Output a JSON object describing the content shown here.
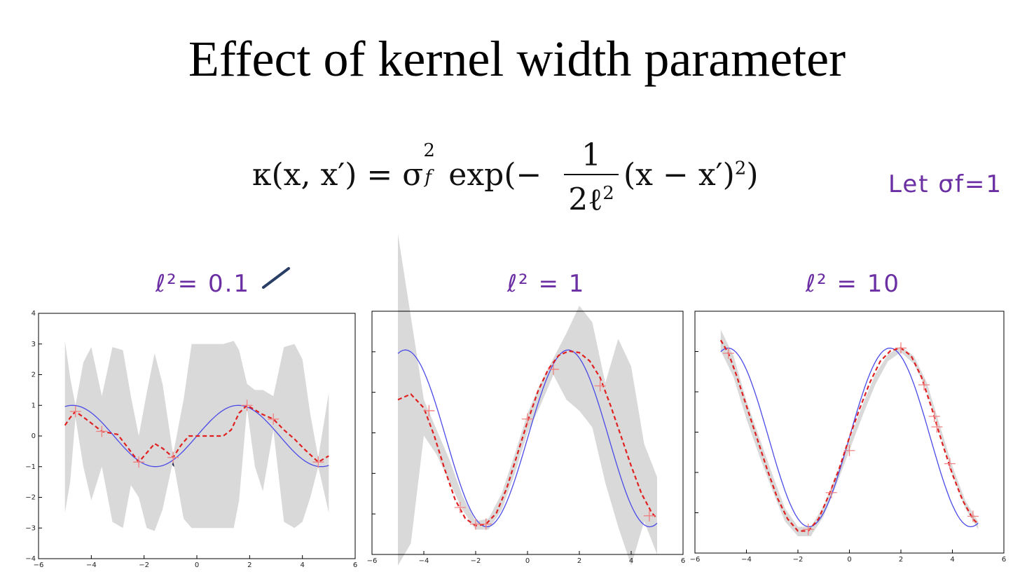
{
  "title": "Effect of kernel width parameter",
  "formula": {
    "lhs": "κ(x, x′) = σ",
    "sup": "2",
    "sub": "f",
    "exp": " exp(−",
    "num": "1",
    "den": "2ℓ",
    "den_sup": "2",
    "rest": "(x − x′)",
    "rest_sup": "2",
    "close": ")"
  },
  "annotations": {
    "let_sigma": "Let σf=1",
    "panel1": "ℓ²= 0.1",
    "panel2": "ℓ² = 1",
    "panel3": "ℓ² = 10"
  },
  "colors": {
    "true_function": "#4a4ae8",
    "mean": "#e02020",
    "band": "#d9d9d9",
    "annotation": "#6b2fa3"
  },
  "chart_data": [
    {
      "type": "line",
      "xlim": [
        -6,
        6
      ],
      "ylim": [
        -4,
        4
      ],
      "x_ticks": [
        "−6",
        "−4",
        "−2",
        "0",
        "2",
        "4",
        "6"
      ],
      "y_ticks": [
        "−4",
        "−3",
        "−2",
        "−1",
        "0",
        "1",
        "2",
        "3",
        "4"
      ],
      "train_x": [
        -4.6,
        -3.6,
        -2.2,
        -0.9,
        1.9,
        2.9,
        4.6
      ],
      "train_y": [
        0.8,
        0.15,
        -0.85,
        -0.7,
        1.0,
        0.55,
        -0.85
      ],
      "true_fn": "sin",
      "mean": {
        "x": [
          -5,
          -4.8,
          -4.6,
          -4.2,
          -3.6,
          -3.0,
          -2.6,
          -2.2,
          -1.8,
          -1.6,
          -1.3,
          -0.9,
          -0.6,
          -0.3,
          0.2,
          0.6,
          1.0,
          1.3,
          1.6,
          1.9,
          2.2,
          2.5,
          2.9,
          3.3,
          3.7,
          4.1,
          4.6,
          5.0
        ],
        "y": [
          0.35,
          0.6,
          0.8,
          0.55,
          0.15,
          0.05,
          -0.4,
          -0.85,
          -0.45,
          -0.25,
          -0.4,
          -0.7,
          -0.3,
          0.0,
          0.0,
          0.0,
          0.0,
          0.2,
          0.75,
          1.0,
          0.85,
          0.7,
          0.55,
          0.2,
          -0.1,
          -0.45,
          -0.85,
          -0.65
        ]
      },
      "band": {
        "x": [
          -5,
          -4.8,
          -4.6,
          -4.3,
          -4.0,
          -3.6,
          -3.2,
          -2.8,
          -2.5,
          -2.2,
          -1.9,
          -1.6,
          -1.3,
          -0.9,
          -0.5,
          -0.2,
          0.2,
          0.6,
          1.0,
          1.4,
          1.6,
          1.9,
          2.2,
          2.5,
          2.9,
          3.3,
          3.7,
          4.0,
          4.3,
          4.6,
          5.0
        ],
        "upper": [
          3.1,
          1.9,
          1.0,
          2.4,
          2.9,
          1.3,
          2.9,
          2.8,
          1.3,
          0.0,
          1.4,
          2.7,
          1.7,
          -0.6,
          1.2,
          3.0,
          3.0,
          3.0,
          3.0,
          3.1,
          2.8,
          1.7,
          1.5,
          1.5,
          1.3,
          2.9,
          3.0,
          2.5,
          0.7,
          -0.7,
          1.4
        ],
        "lower": [
          -2.5,
          -1.5,
          0.6,
          -1.0,
          -2.1,
          -1.0,
          -2.8,
          -3.0,
          -1.6,
          -2.0,
          -3.0,
          -3.1,
          -2.4,
          -0.8,
          -2.7,
          -3.0,
          -3.0,
          -3.0,
          -3.0,
          -3.0,
          -2.1,
          0.9,
          -1.0,
          -1.8,
          0.2,
          -2.8,
          -3.0,
          -2.8,
          -2.0,
          -1.0,
          -2.5
        ]
      }
    },
    {
      "type": "line",
      "xlim": [
        -6,
        6
      ],
      "ylim": [
        -2.8,
        1.6
      ],
      "x_ticks": [
        "−6",
        "−4",
        "−2",
        "0",
        "2",
        "4",
        "6"
      ],
      "train_x": [
        -3.8,
        -2.6,
        -2.0,
        -1.6,
        0.0,
        1.0,
        2.8,
        4.7
      ],
      "train_y": [
        -0.2,
        -1.95,
        -2.25,
        -2.25,
        -0.35,
        0.55,
        0.25,
        -2.1
      ],
      "true_fn": "sin",
      "mean": {
        "x": [
          -5,
          -4.5,
          -4.0,
          -3.6,
          -3.2,
          -2.8,
          -2.4,
          -2.0,
          -1.6,
          -1.2,
          -0.8,
          -0.4,
          0.0,
          0.4,
          0.8,
          1.2,
          1.6,
          2.0,
          2.4,
          2.8,
          3.2,
          3.6,
          4.0,
          4.4,
          4.8,
          5.0
        ],
        "y": [
          0.0,
          0.1,
          -0.15,
          -0.65,
          -1.25,
          -1.8,
          -2.15,
          -2.28,
          -2.25,
          -2.05,
          -1.6,
          -1.0,
          -0.4,
          0.15,
          0.55,
          0.8,
          0.88,
          0.85,
          0.7,
          0.4,
          -0.1,
          -0.65,
          -1.2,
          -1.7,
          -2.05,
          -2.15
        ]
      },
      "band": {
        "x": [
          -5,
          -4.5,
          -4.0,
          -3.5,
          -3.0,
          -2.5,
          -2.0,
          -1.5,
          -1.0,
          -0.5,
          0.0,
          0.5,
          1.0,
          1.5,
          2.0,
          2.5,
          3.0,
          3.5,
          4.0,
          4.5,
          5.0
        ],
        "upper": [
          3.0,
          1.5,
          0.0,
          -0.55,
          -1.1,
          -1.75,
          -2.2,
          -2.15,
          -1.7,
          -1.0,
          -0.25,
          0.3,
          0.75,
          1.2,
          1.7,
          1.4,
          0.3,
          1.1,
          0.6,
          -0.8,
          -1.4
        ],
        "lower": [
          -3.0,
          -2.6,
          -0.65,
          -1.0,
          -1.5,
          -2.0,
          -2.35,
          -2.35,
          -2.0,
          -1.35,
          -0.6,
          -0.1,
          0.45,
          0.0,
          -0.2,
          -0.5,
          -1.5,
          -2.3,
          -3.0,
          -2.2,
          -2.8
        ]
      }
    },
    {
      "type": "line",
      "xlim": [
        -6,
        6
      ],
      "ylim": [
        -2.8,
        1.8
      ],
      "x_ticks": [
        "−6",
        "−4",
        "−2",
        "0",
        "2",
        "4",
        "6"
      ],
      "train_x": [
        -4.7,
        -1.6,
        -0.7,
        0.0,
        2.0,
        2.9,
        3.3,
        3.4,
        3.9,
        4.8
      ],
      "train_y": [
        1.0,
        -2.35,
        -1.65,
        -0.85,
        1.1,
        0.4,
        -0.2,
        -0.4,
        -1.1,
        -2.1
      ],
      "true_fn": "sin",
      "mean": {
        "x": [
          -5,
          -4.7,
          -4.4,
          -4.0,
          -3.6,
          -3.2,
          -2.8,
          -2.4,
          -2.0,
          -1.6,
          -1.2,
          -0.8,
          -0.4,
          0.0,
          0.4,
          0.8,
          1.2,
          1.6,
          2.0,
          2.4,
          2.8,
          3.2,
          3.6,
          4.0,
          4.4,
          4.8,
          5.0
        ],
        "y": [
          1.25,
          1.0,
          0.6,
          0.0,
          -0.6,
          -1.2,
          -1.75,
          -2.15,
          -2.38,
          -2.38,
          -2.15,
          -1.7,
          -1.2,
          -0.6,
          -0.05,
          0.45,
          0.85,
          1.05,
          1.1,
          0.95,
          0.55,
          -0.05,
          -0.7,
          -1.3,
          -1.8,
          -2.15,
          -2.25
        ]
      },
      "band": {
        "x": [
          -5,
          -4.5,
          -4.0,
          -3.5,
          -3.0,
          -2.5,
          -2.0,
          -1.5,
          -1.0,
          -0.5,
          0.0,
          0.5,
          1.0,
          1.5,
          2.0,
          2.5,
          3.0,
          3.5,
          4.0,
          4.5,
          5.0
        ],
        "upper": [
          1.45,
          0.95,
          0.1,
          -0.6,
          -1.3,
          -1.95,
          -2.3,
          -2.3,
          -1.9,
          -1.3,
          -0.65,
          0.0,
          0.6,
          0.98,
          1.13,
          0.95,
          0.45,
          -0.35,
          -1.15,
          -1.8,
          -2.2
        ],
        "lower": [
          1.05,
          0.55,
          -0.25,
          -0.95,
          -1.6,
          -2.2,
          -2.48,
          -2.48,
          -2.1,
          -1.5,
          -0.85,
          -0.2,
          0.4,
          0.85,
          1.02,
          0.8,
          0.3,
          -0.5,
          -1.3,
          -1.95,
          -2.35
        ]
      }
    }
  ]
}
